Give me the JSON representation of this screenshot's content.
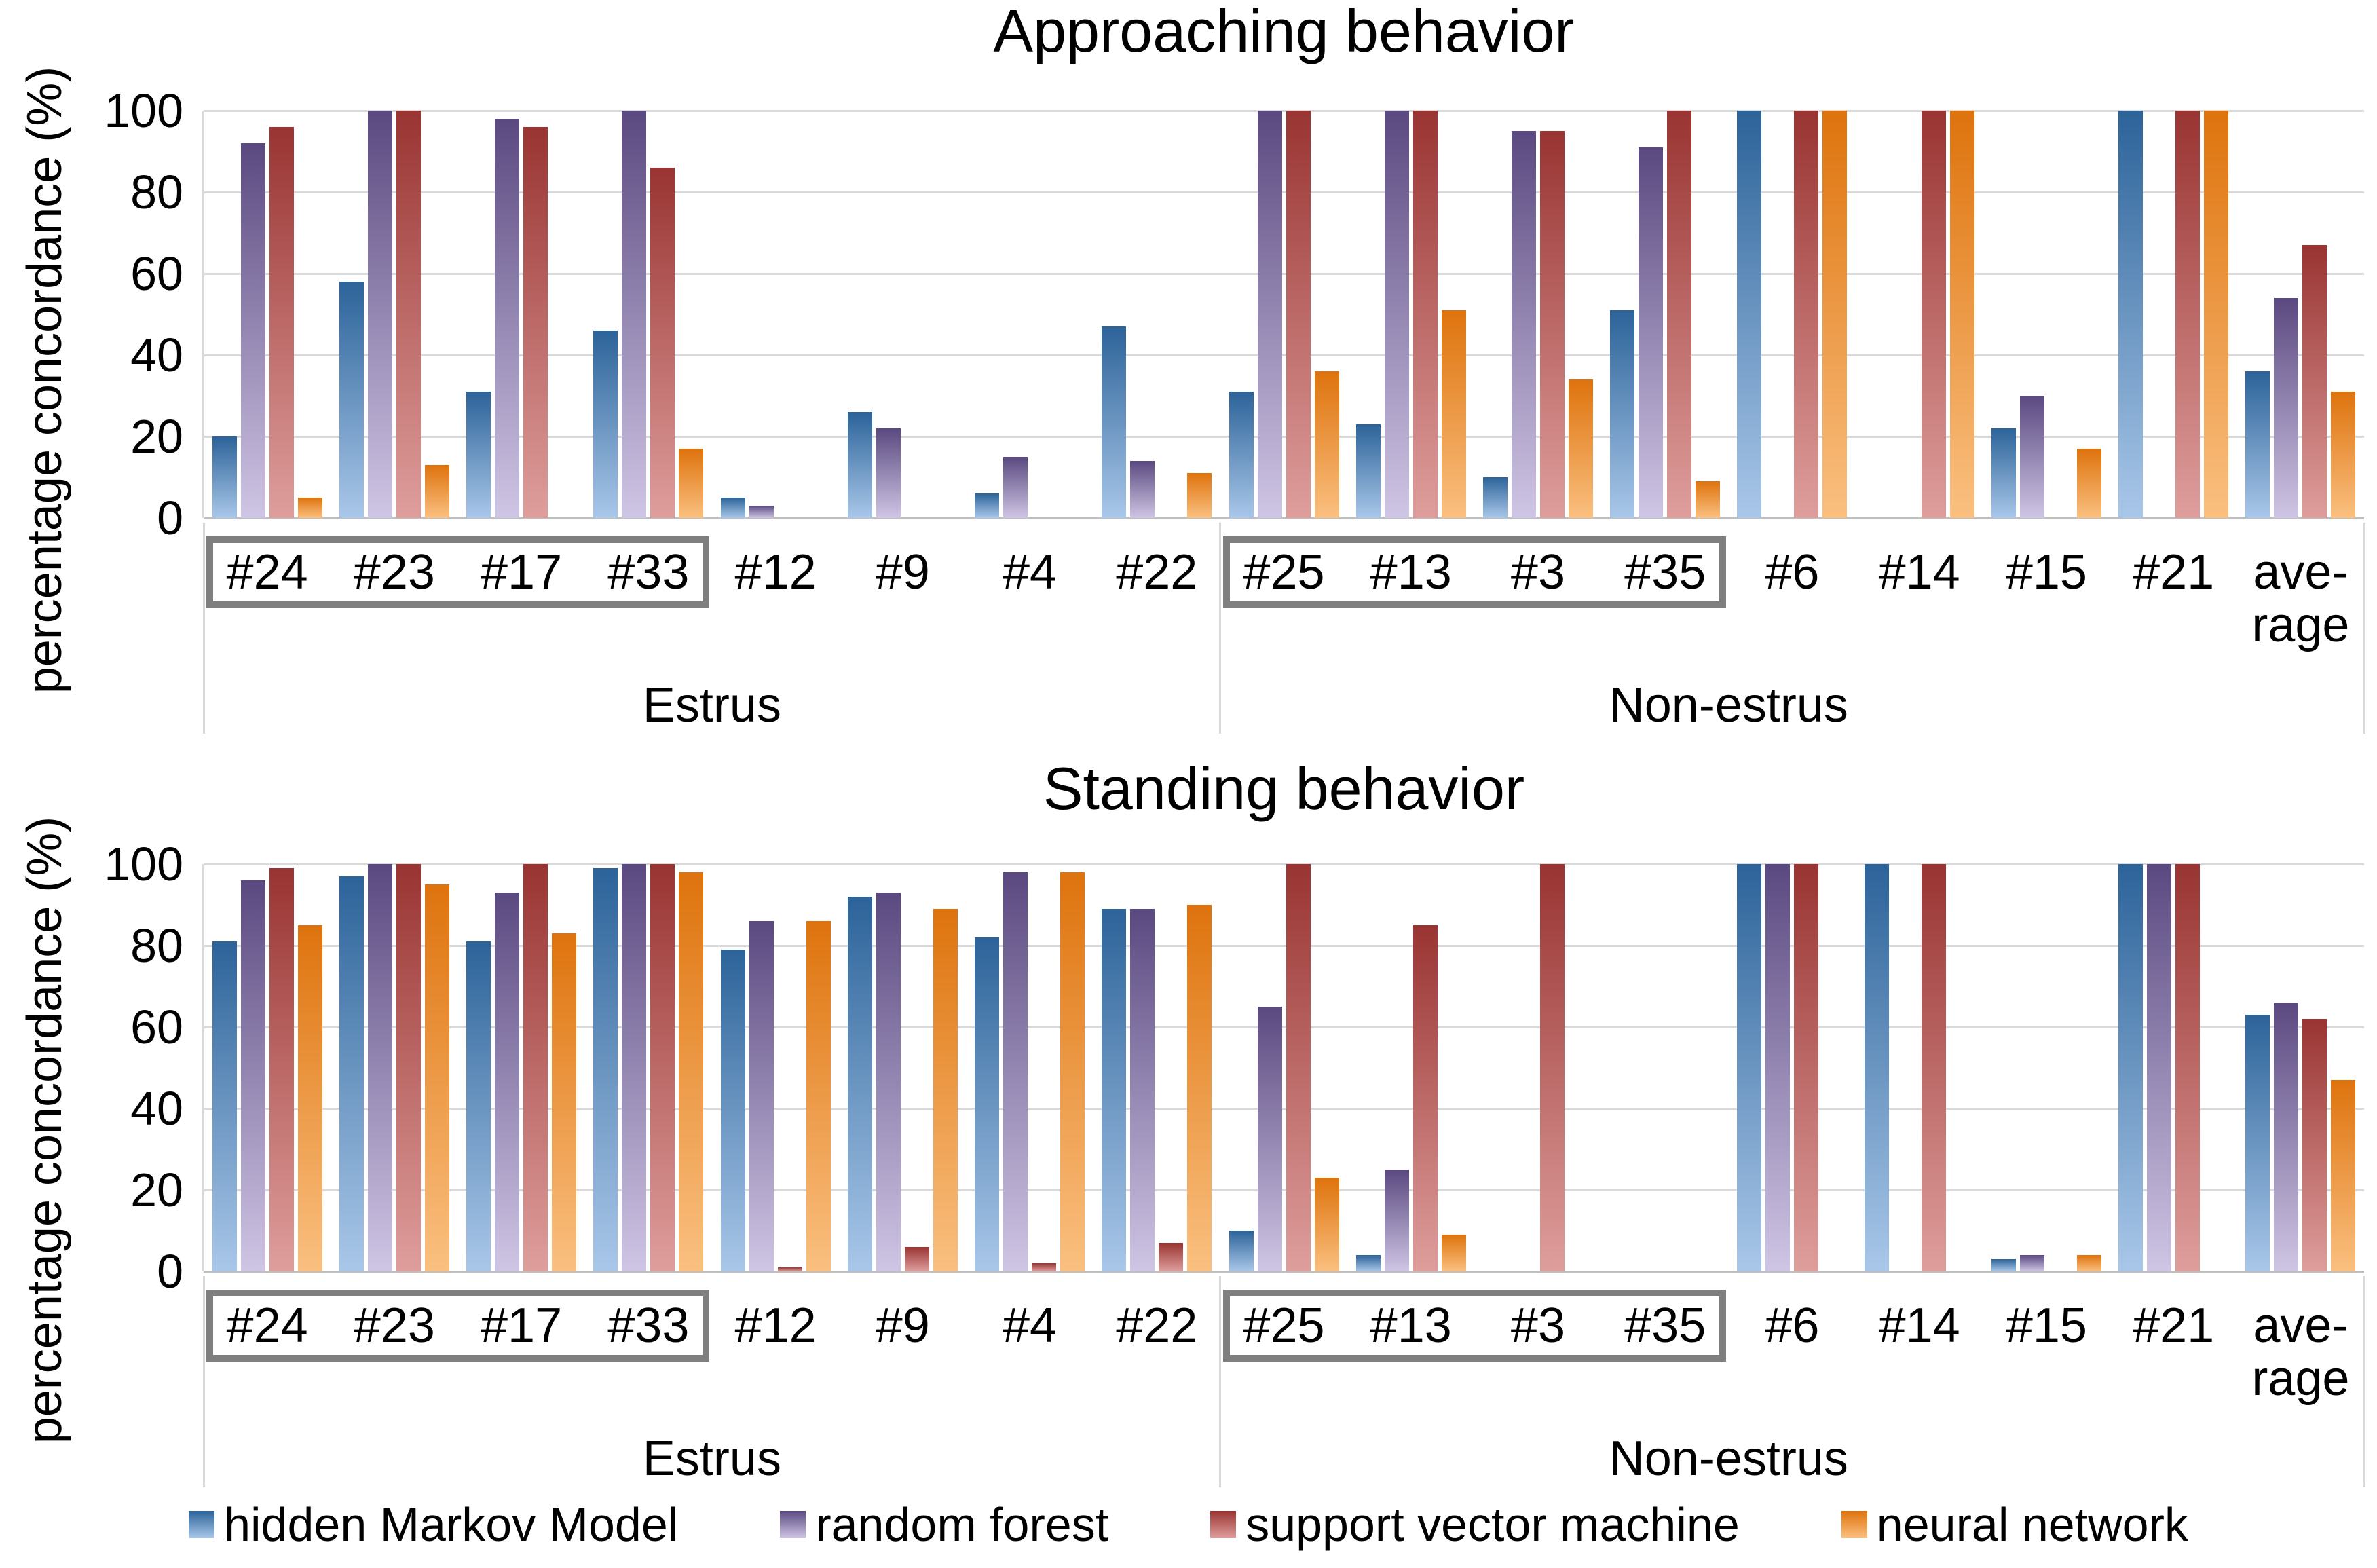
{
  "page": {
    "background": "#ffffff"
  },
  "series_meta": [
    {
      "id": "hmm",
      "label": "hidden Markov Model",
      "color_top": "#2c6399",
      "color_bottom": "#a9c7e9"
    },
    {
      "id": "rf",
      "label": "random forest",
      "color_top": "#5a4980",
      "color_bottom": "#cfc5e4"
    },
    {
      "id": "svm",
      "label": "support vector machine",
      "color_top": "#993432",
      "color_bottom": "#de9e9c"
    },
    {
      "id": "nn",
      "label": "neural network",
      "color_top": "#de730d",
      "color_bottom": "#fac080"
    }
  ],
  "colors": {
    "gridline": "#d9d9d9",
    "axis_line": "#bfbfbf",
    "group_box_border": "#7f7f7f",
    "text": "#000000",
    "background": "#ffffff"
  },
  "axis": {
    "ylabel": "percentage concordance (%)",
    "yticks": [
      0,
      20,
      40,
      60,
      80,
      100
    ],
    "ymax": 100
  },
  "groups": [
    {
      "label": "Estrus",
      "start": 0,
      "end": 8
    },
    {
      "label": "Non-estrus",
      "start": 8,
      "end": 16
    }
  ],
  "boxed_ranges": [
    {
      "start": 0,
      "end": 4
    },
    {
      "start": 8,
      "end": 12
    }
  ],
  "chart_data": [
    {
      "type": "bar",
      "title": "Approaching behavior",
      "ylabel": "percentage concordance (%)",
      "ylim": [
        0,
        100
      ],
      "grid": "horizontal",
      "legend_position": "bottom-shared",
      "categories": [
        "#24",
        "#23",
        "#17",
        "#33",
        "#12",
        "#9",
        "#4",
        "#22",
        "#25",
        "#13",
        "#3",
        "#35",
        "#6",
        "#14",
        "#15",
        "#21",
        "ave-\nrage"
      ],
      "group_labels": [
        "Estrus",
        "Non-estrus"
      ],
      "series": [
        {
          "name": "hidden Markov Model",
          "values": [
            20,
            58,
            31,
            46,
            5,
            26,
            6,
            47,
            31,
            23,
            10,
            51,
            100,
            0,
            22,
            100,
            36
          ]
        },
        {
          "name": "random forest",
          "values": [
            92,
            100,
            98,
            100,
            3,
            22,
            15,
            14,
            100,
            100,
            95,
            91,
            0,
            0,
            30,
            0,
            54
          ]
        },
        {
          "name": "support vector machine",
          "values": [
            96,
            100,
            96,
            86,
            0,
            0,
            0,
            0,
            100,
            100,
            95,
            100,
            100,
            100,
            0,
            100,
            67
          ]
        },
        {
          "name": "neural network",
          "values": [
            5,
            13,
            0,
            17,
            0,
            0,
            0,
            11,
            36,
            51,
            34,
            9,
            100,
            100,
            17,
            100,
            31
          ]
        }
      ]
    },
    {
      "type": "bar",
      "title": "Standing behavior",
      "ylabel": "percentage concordance (%)",
      "ylim": [
        0,
        100
      ],
      "grid": "horizontal",
      "legend_position": "bottom-shared",
      "categories": [
        "#24",
        "#23",
        "#17",
        "#33",
        "#12",
        "#9",
        "#4",
        "#22",
        "#25",
        "#13",
        "#3",
        "#35",
        "#6",
        "#14",
        "#15",
        "#21",
        "ave-\nrage"
      ],
      "group_labels": [
        "Estrus",
        "Non-estrus"
      ],
      "series": [
        {
          "name": "hidden Markov Model",
          "values": [
            81,
            97,
            81,
            99,
            79,
            92,
            82,
            89,
            10,
            4,
            0,
            0,
            100,
            100,
            3,
            100,
            63
          ]
        },
        {
          "name": "random forest",
          "values": [
            96,
            100,
            93,
            100,
            86,
            93,
            98,
            89,
            65,
            25,
            0,
            0,
            100,
            0,
            4,
            100,
            66
          ]
        },
        {
          "name": "support vector machine",
          "values": [
            99,
            100,
            100,
            100,
            1,
            6,
            2,
            7,
            100,
            85,
            100,
            0,
            100,
            100,
            0,
            100,
            62
          ]
        },
        {
          "name": "neural network",
          "values": [
            85,
            95,
            83,
            98,
            86,
            89,
            98,
            90,
            23,
            9,
            0,
            0,
            0,
            0,
            4,
            0,
            47
          ]
        }
      ]
    }
  ],
  "legend": {
    "items": [
      "hidden Markov Model",
      "random forest",
      "support vector machine",
      "neural network"
    ]
  }
}
